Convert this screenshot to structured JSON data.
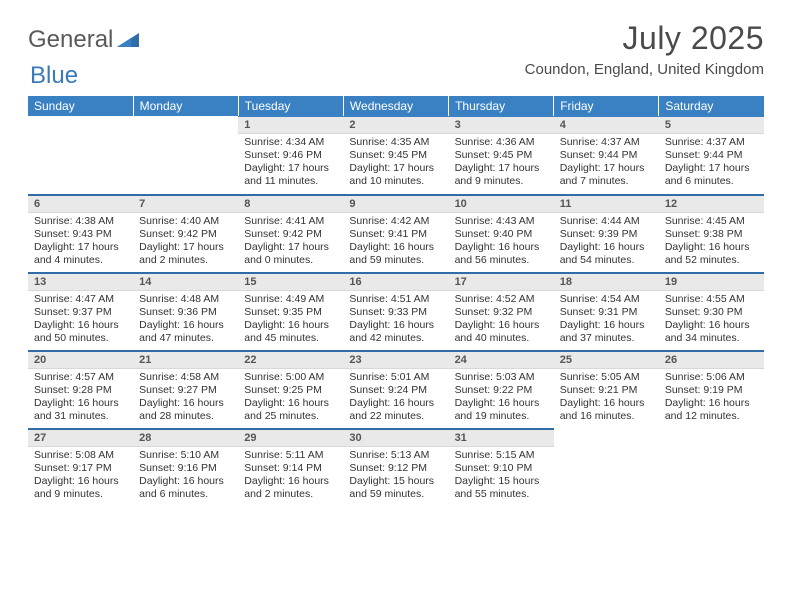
{
  "brand": {
    "part1": "General",
    "part2": "Blue"
  },
  "title": "July 2025",
  "location": "Coundon, England, United Kingdom",
  "colors": {
    "header_bg": "#3a81c4",
    "header_text": "#ffffff",
    "daynum_bg": "#e9e9e9",
    "daynum_text": "#555555",
    "row_sep": "#2f6ca8",
    "brand_gray": "#5a5a5a",
    "brand_blue": "#3a7ab8",
    "text": "#333333"
  },
  "weekdays": [
    "Sunday",
    "Monday",
    "Tuesday",
    "Wednesday",
    "Thursday",
    "Friday",
    "Saturday"
  ],
  "weeks": [
    [
      {
        "n": "",
        "sunrise": "",
        "sunset": "",
        "daylight": ""
      },
      {
        "n": "",
        "sunrise": "",
        "sunset": "",
        "daylight": ""
      },
      {
        "n": "1",
        "sunrise": "Sunrise: 4:34 AM",
        "sunset": "Sunset: 9:46 PM",
        "daylight": "Daylight: 17 hours and 11 minutes."
      },
      {
        "n": "2",
        "sunrise": "Sunrise: 4:35 AM",
        "sunset": "Sunset: 9:45 PM",
        "daylight": "Daylight: 17 hours and 10 minutes."
      },
      {
        "n": "3",
        "sunrise": "Sunrise: 4:36 AM",
        "sunset": "Sunset: 9:45 PM",
        "daylight": "Daylight: 17 hours and 9 minutes."
      },
      {
        "n": "4",
        "sunrise": "Sunrise: 4:37 AM",
        "sunset": "Sunset: 9:44 PM",
        "daylight": "Daylight: 17 hours and 7 minutes."
      },
      {
        "n": "5",
        "sunrise": "Sunrise: 4:37 AM",
        "sunset": "Sunset: 9:44 PM",
        "daylight": "Daylight: 17 hours and 6 minutes."
      }
    ],
    [
      {
        "n": "6",
        "sunrise": "Sunrise: 4:38 AM",
        "sunset": "Sunset: 9:43 PM",
        "daylight": "Daylight: 17 hours and 4 minutes."
      },
      {
        "n": "7",
        "sunrise": "Sunrise: 4:40 AM",
        "sunset": "Sunset: 9:42 PM",
        "daylight": "Daylight: 17 hours and 2 minutes."
      },
      {
        "n": "8",
        "sunrise": "Sunrise: 4:41 AM",
        "sunset": "Sunset: 9:42 PM",
        "daylight": "Daylight: 17 hours and 0 minutes."
      },
      {
        "n": "9",
        "sunrise": "Sunrise: 4:42 AM",
        "sunset": "Sunset: 9:41 PM",
        "daylight": "Daylight: 16 hours and 59 minutes."
      },
      {
        "n": "10",
        "sunrise": "Sunrise: 4:43 AM",
        "sunset": "Sunset: 9:40 PM",
        "daylight": "Daylight: 16 hours and 56 minutes."
      },
      {
        "n": "11",
        "sunrise": "Sunrise: 4:44 AM",
        "sunset": "Sunset: 9:39 PM",
        "daylight": "Daylight: 16 hours and 54 minutes."
      },
      {
        "n": "12",
        "sunrise": "Sunrise: 4:45 AM",
        "sunset": "Sunset: 9:38 PM",
        "daylight": "Daylight: 16 hours and 52 minutes."
      }
    ],
    [
      {
        "n": "13",
        "sunrise": "Sunrise: 4:47 AM",
        "sunset": "Sunset: 9:37 PM",
        "daylight": "Daylight: 16 hours and 50 minutes."
      },
      {
        "n": "14",
        "sunrise": "Sunrise: 4:48 AM",
        "sunset": "Sunset: 9:36 PM",
        "daylight": "Daylight: 16 hours and 47 minutes."
      },
      {
        "n": "15",
        "sunrise": "Sunrise: 4:49 AM",
        "sunset": "Sunset: 9:35 PM",
        "daylight": "Daylight: 16 hours and 45 minutes."
      },
      {
        "n": "16",
        "sunrise": "Sunrise: 4:51 AM",
        "sunset": "Sunset: 9:33 PM",
        "daylight": "Daylight: 16 hours and 42 minutes."
      },
      {
        "n": "17",
        "sunrise": "Sunrise: 4:52 AM",
        "sunset": "Sunset: 9:32 PM",
        "daylight": "Daylight: 16 hours and 40 minutes."
      },
      {
        "n": "18",
        "sunrise": "Sunrise: 4:54 AM",
        "sunset": "Sunset: 9:31 PM",
        "daylight": "Daylight: 16 hours and 37 minutes."
      },
      {
        "n": "19",
        "sunrise": "Sunrise: 4:55 AM",
        "sunset": "Sunset: 9:30 PM",
        "daylight": "Daylight: 16 hours and 34 minutes."
      }
    ],
    [
      {
        "n": "20",
        "sunrise": "Sunrise: 4:57 AM",
        "sunset": "Sunset: 9:28 PM",
        "daylight": "Daylight: 16 hours and 31 minutes."
      },
      {
        "n": "21",
        "sunrise": "Sunrise: 4:58 AM",
        "sunset": "Sunset: 9:27 PM",
        "daylight": "Daylight: 16 hours and 28 minutes."
      },
      {
        "n": "22",
        "sunrise": "Sunrise: 5:00 AM",
        "sunset": "Sunset: 9:25 PM",
        "daylight": "Daylight: 16 hours and 25 minutes."
      },
      {
        "n": "23",
        "sunrise": "Sunrise: 5:01 AM",
        "sunset": "Sunset: 9:24 PM",
        "daylight": "Daylight: 16 hours and 22 minutes."
      },
      {
        "n": "24",
        "sunrise": "Sunrise: 5:03 AM",
        "sunset": "Sunset: 9:22 PM",
        "daylight": "Daylight: 16 hours and 19 minutes."
      },
      {
        "n": "25",
        "sunrise": "Sunrise: 5:05 AM",
        "sunset": "Sunset: 9:21 PM",
        "daylight": "Daylight: 16 hours and 16 minutes."
      },
      {
        "n": "26",
        "sunrise": "Sunrise: 5:06 AM",
        "sunset": "Sunset: 9:19 PM",
        "daylight": "Daylight: 16 hours and 12 minutes."
      }
    ],
    [
      {
        "n": "27",
        "sunrise": "Sunrise: 5:08 AM",
        "sunset": "Sunset: 9:17 PM",
        "daylight": "Daylight: 16 hours and 9 minutes."
      },
      {
        "n": "28",
        "sunrise": "Sunrise: 5:10 AM",
        "sunset": "Sunset: 9:16 PM",
        "daylight": "Daylight: 16 hours and 6 minutes."
      },
      {
        "n": "29",
        "sunrise": "Sunrise: 5:11 AM",
        "sunset": "Sunset: 9:14 PM",
        "daylight": "Daylight: 16 hours and 2 minutes."
      },
      {
        "n": "30",
        "sunrise": "Sunrise: 5:13 AM",
        "sunset": "Sunset: 9:12 PM",
        "daylight": "Daylight: 15 hours and 59 minutes."
      },
      {
        "n": "31",
        "sunrise": "Sunrise: 5:15 AM",
        "sunset": "Sunset: 9:10 PM",
        "daylight": "Daylight: 15 hours and 55 minutes."
      },
      {
        "n": "",
        "sunrise": "",
        "sunset": "",
        "daylight": ""
      },
      {
        "n": "",
        "sunrise": "",
        "sunset": "",
        "daylight": ""
      }
    ]
  ]
}
